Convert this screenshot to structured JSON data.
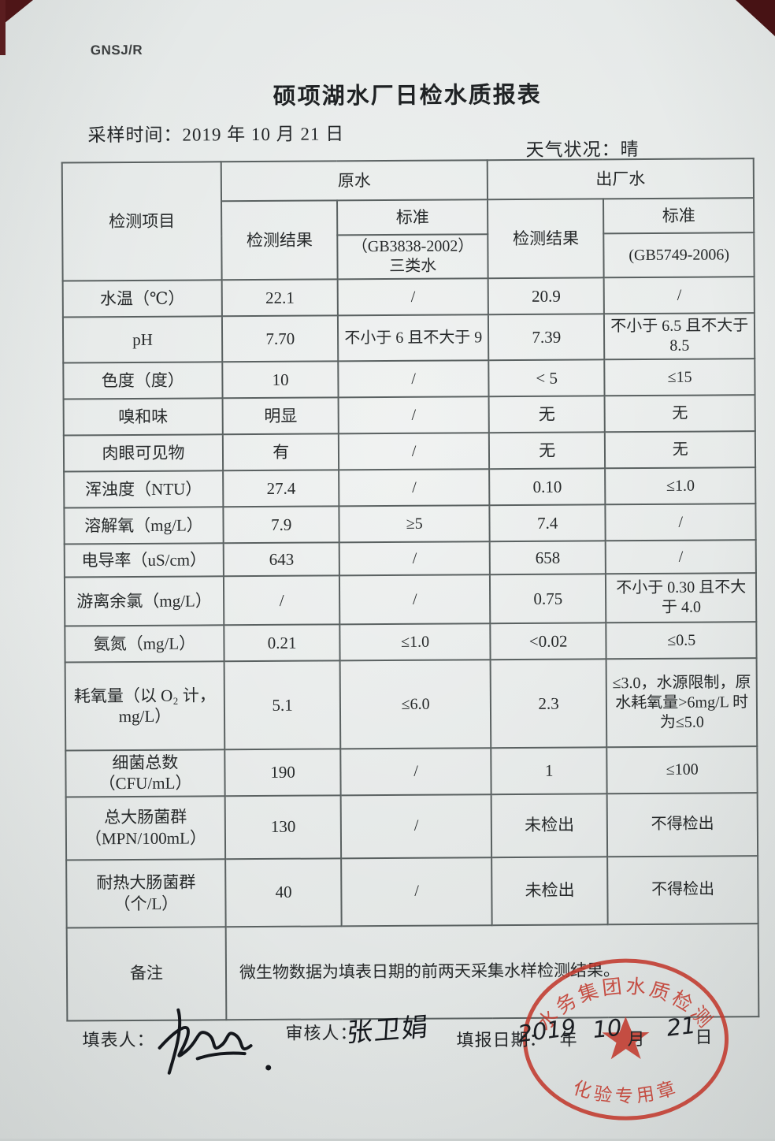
{
  "page": {
    "doc_code": "GNSJ/R",
    "title": "硕项湖水厂日检水质报表",
    "sampling_label": "采样时间：",
    "sampling_value": "2019 年 10 月 21 日",
    "weather_label": "天气状况：",
    "weather_value": "晴"
  },
  "table": {
    "header": {
      "item": "检测项目",
      "raw_water": "原水",
      "finished_water": "出厂水",
      "result": "检测结果",
      "standard": "标准",
      "raw_standard_note": "（GB3838-2002）\n三类水",
      "finished_standard_note": "(GB5749-2006)"
    },
    "rows": [
      {
        "item": "水温（℃）",
        "raw_result": "22.1",
        "raw_standard": "/",
        "fin_result": "20.9",
        "fin_standard": "/"
      },
      {
        "item": "pH",
        "raw_result": "7.70",
        "raw_standard": "不小于 6 且不大于 9",
        "fin_result": "7.39",
        "fin_standard": "不小于 6.5 且不大于 8.5"
      },
      {
        "item": "色度（度）",
        "raw_result": "10",
        "raw_standard": "/",
        "fin_result": "< 5",
        "fin_standard": "≤15"
      },
      {
        "item": "嗅和味",
        "raw_result": "明显",
        "raw_standard": "/",
        "fin_result": "无",
        "fin_standard": "无"
      },
      {
        "item": "肉眼可见物",
        "raw_result": "有",
        "raw_standard": "/",
        "fin_result": "无",
        "fin_standard": "无"
      },
      {
        "item": "浑浊度（NTU）",
        "raw_result": "27.4",
        "raw_standard": "/",
        "fin_result": "0.10",
        "fin_standard": "≤1.0"
      },
      {
        "item": "溶解氧（mg/L）",
        "raw_result": "7.9",
        "raw_standard": "≥5",
        "fin_result": "7.4",
        "fin_standard": "/"
      },
      {
        "item": "电导率（uS/cm）",
        "raw_result": "643",
        "raw_standard": "/",
        "fin_result": "658",
        "fin_standard": "/"
      },
      {
        "item": "游离余氯（mg/L）",
        "raw_result": "/",
        "raw_standard": "/",
        "fin_result": "0.75",
        "fin_standard": "不小于 0.30 且不大于 4.0"
      },
      {
        "item": "氨氮（mg/L）",
        "raw_result": "0.21",
        "raw_standard": "≤1.0",
        "fin_result": "<0.02",
        "fin_standard": "≤0.5"
      },
      {
        "item": "耗氧量（以 O₂ 计，mg/L）",
        "raw_result": "5.1",
        "raw_standard": "≤6.0",
        "fin_result": "2.3",
        "fin_standard": "≤3.0，水源限制，原水耗氧量>6mg/L 时为≤5.0"
      },
      {
        "item": "细菌总数（CFU/mL）",
        "raw_result": "190",
        "raw_standard": "/",
        "fin_result": "1",
        "fin_standard": "≤100"
      },
      {
        "item": "总大肠菌群（MPN/100mL）",
        "raw_result": "130",
        "raw_standard": "/",
        "fin_result": "未检出",
        "fin_standard": "不得检出"
      },
      {
        "item": "耐热大肠菌群（个/L）",
        "raw_result": "40",
        "raw_standard": "/",
        "fin_result": "未检出",
        "fin_standard": "不得检出"
      }
    ],
    "remark_label": "备注",
    "remark_text": "微生物数据为填表日期的前两天采集水样检测结果。"
  },
  "footer": {
    "filler_label": "填表人：",
    "reviewer_label": "审核人：",
    "reviewer_name": "张卫娟",
    "date_label": "填报日期：",
    "date_year": "2019",
    "year_suffix": "年",
    "date_month": "10",
    "month_suffix": "月",
    "date_day": "21",
    "day_suffix": "日"
  },
  "stamp": {
    "arc_text": "水务集团水质检测",
    "bottom_text": "化验专用章",
    "color": "#c23a2e"
  }
}
